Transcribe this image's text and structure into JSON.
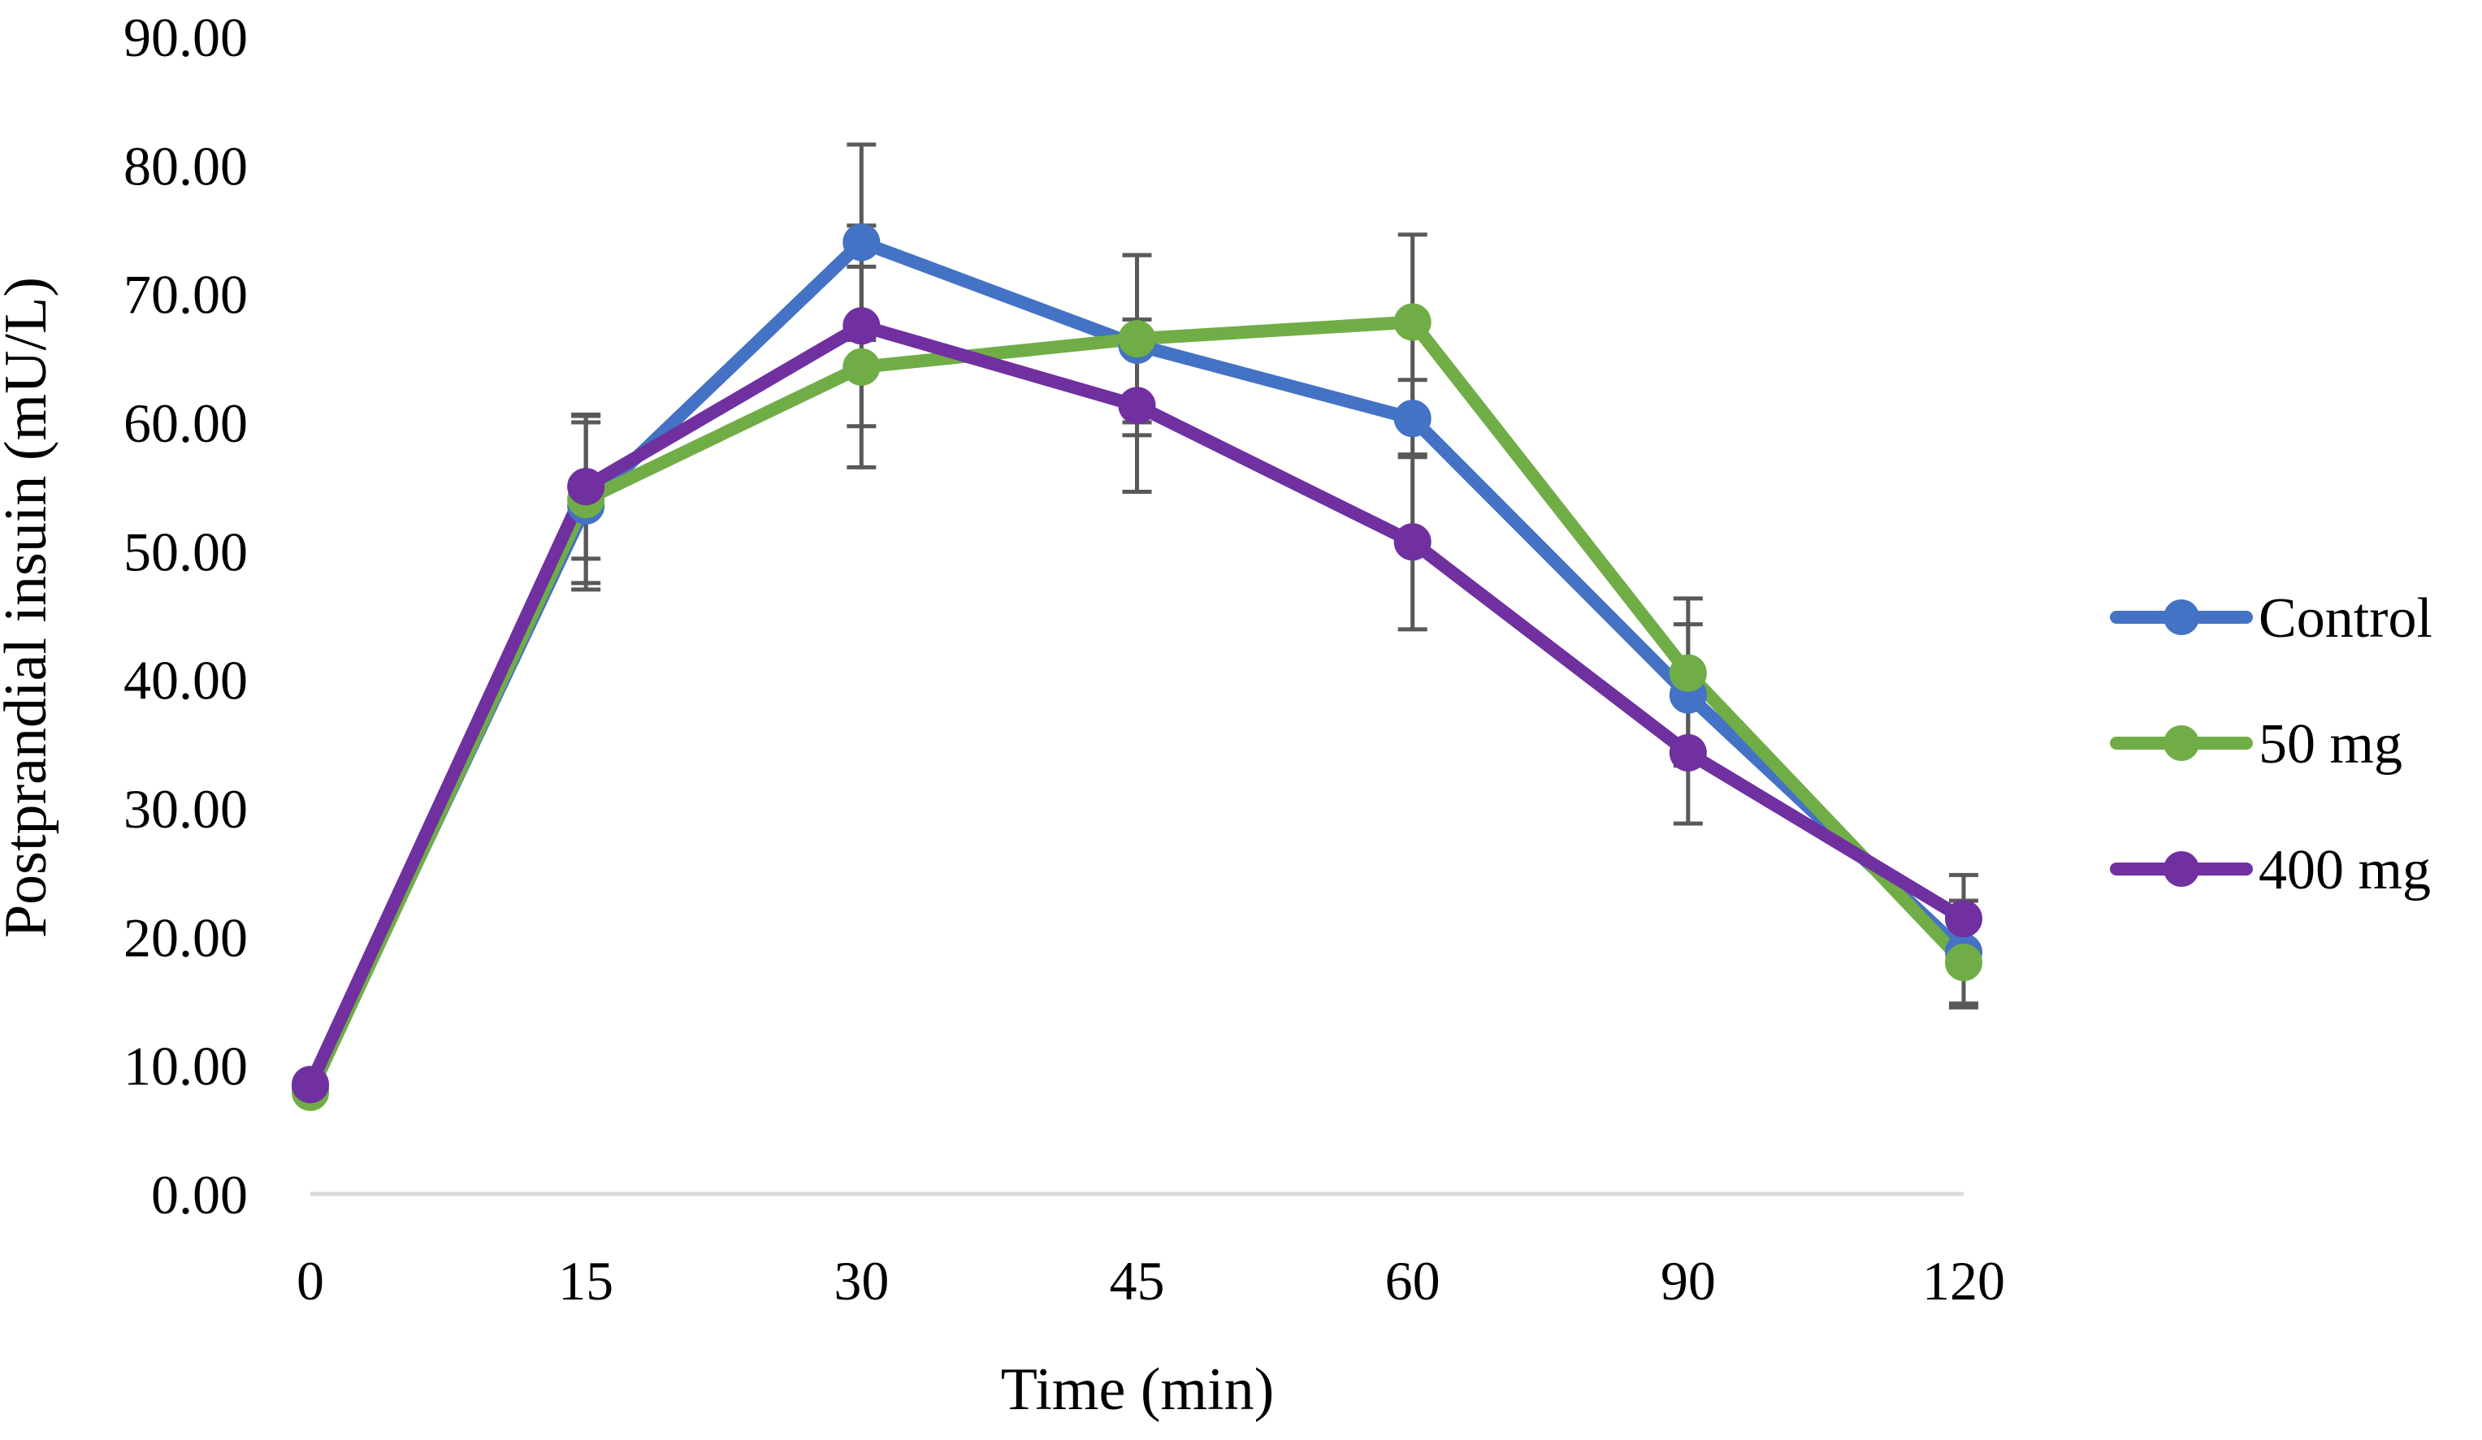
{
  "chart_data": {
    "type": "line",
    "title": "",
    "xlabel": "Time (min)",
    "ylabel": "Postprandial insuin (mU/L)",
    "categories": [
      "0",
      "15",
      "30",
      "45",
      "60",
      "90",
      "120"
    ],
    "ylim": [
      0,
      90
    ],
    "yticks": [
      "0.00",
      "10.00",
      "20.00",
      "30.00",
      "40.00",
      "50.00",
      "60.00",
      "70.00",
      "80.00",
      "90.00"
    ],
    "grid": false,
    "legend_position": "right",
    "series": [
      {
        "name": "Control",
        "color": "#4472C4",
        "values": [
          8.2,
          53.5,
          74.0,
          66.0,
          60.3,
          38.8,
          18.8
        ],
        "errors": [
          0,
          6.5,
          7.6,
          7.0,
          3.0,
          5.5,
          4.0
        ]
      },
      {
        "name": "50 mg",
        "color": "#70AD47",
        "values": [
          7.9,
          54.0,
          64.3,
          66.5,
          67.8,
          40.5,
          18.0
        ],
        "errors": [
          0,
          6.5,
          7.8,
          6.5,
          6.8,
          5.8,
          3.5
        ]
      },
      {
        "name": "400 mg",
        "color": "#7030A0",
        "values": [
          8.5,
          55.0,
          67.5,
          61.3,
          50.7,
          34.3,
          21.4
        ],
        "errors": [
          0,
          5.6,
          7.8,
          6.7,
          6.8,
          5.5,
          3.4
        ]
      }
    ],
    "error_bar_color": "#595959",
    "axis_line_color": "#D9D9D9"
  }
}
